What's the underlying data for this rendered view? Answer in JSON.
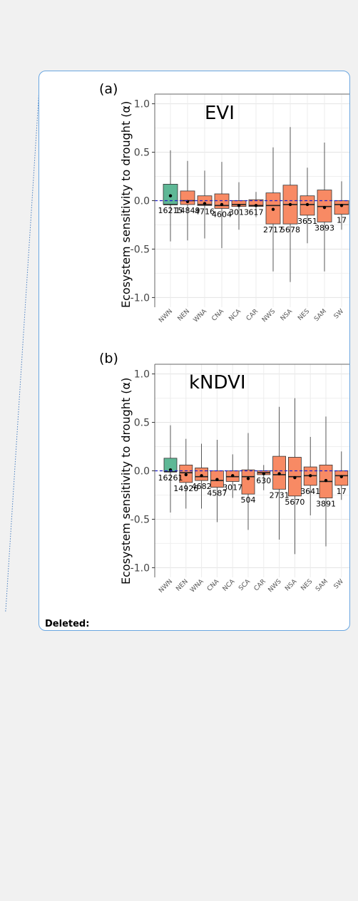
{
  "balloon": {
    "label": "Deleted:",
    "border_color": "#6aa6e0",
    "connector_color": "#4a7fc0"
  },
  "figure": {
    "ylabel": "Ecosystem sensitivity to drought (α)",
    "colors": {
      "wet": "#5fb896",
      "dry": "#f88a64",
      "zero_line": "#1e1ec8"
    }
  },
  "chart_data": [
    {
      "type": "boxplot",
      "panel": "(a)",
      "title": "EVI",
      "ylabel": "Ecosystem sensitivity to drought (α)",
      "ylim": [
        -1.1,
        1.1
      ],
      "yticks": [
        "1.0",
        "0.5",
        "0.0",
        "-0.5",
        "-1.0"
      ],
      "ytick_values": [
        1.0,
        0.5,
        0.0,
        -0.5,
        -1.0
      ],
      "grid": true,
      "categories": [
        "NWN",
        "NEN",
        "WNA",
        "CNA",
        "NCA",
        "CAR",
        "NWS",
        "NSA",
        "NES",
        "SAM",
        "SW"
      ],
      "boxes": [
        {
          "cat": "NWN",
          "whislo": -0.42,
          "q1": -0.04,
          "med": -0.04,
          "q3": 0.17,
          "whishi": 0.52,
          "mean": 0.05,
          "n": "16215",
          "group": "wet"
        },
        {
          "cat": "NEN",
          "whislo": -0.41,
          "q1": -0.04,
          "med": 0.0,
          "q3": 0.1,
          "whishi": 0.41,
          "mean": -0.01,
          "n": "14849",
          "group": "dry"
        },
        {
          "cat": "WNA",
          "whislo": -0.39,
          "q1": -0.05,
          "med": -0.04,
          "q3": 0.05,
          "whishi": 0.31,
          "mean": -0.03,
          "n": "4716",
          "group": "dry"
        },
        {
          "cat": "CNA",
          "whislo": -0.49,
          "q1": -0.08,
          "med": -0.05,
          "q3": 0.07,
          "whishi": 0.4,
          "mean": -0.04,
          "n": "4604",
          "group": "dry"
        },
        {
          "cat": "NCA",
          "whislo": -0.3,
          "q1": -0.06,
          "med": -0.04,
          "q3": 0.0,
          "whishi": 0.19,
          "mean": -0.05,
          "n": "3013",
          "group": "dry"
        },
        {
          "cat": "CAR",
          "whislo": -0.17,
          "q1": -0.06,
          "med": -0.05,
          "q3": 0.01,
          "whishi": 0.09,
          "mean": -0.05,
          "n": "617",
          "group": "dry"
        },
        {
          "cat": "NWS",
          "whislo": -0.73,
          "q1": -0.24,
          "med": -0.05,
          "q3": 0.08,
          "whishi": 0.55,
          "mean": -0.09,
          "n": "2717",
          "group": "dry"
        },
        {
          "cat": "NSA",
          "whislo": -0.84,
          "q1": -0.24,
          "med": -0.04,
          "q3": 0.16,
          "whishi": 0.76,
          "mean": -0.04,
          "n": "5678",
          "group": "dry"
        },
        {
          "cat": "NES",
          "whislo": -0.44,
          "q1": -0.15,
          "med": -0.04,
          "q3": 0.05,
          "whishi": 0.34,
          "mean": -0.04,
          "n": "3651",
          "group": "dry"
        },
        {
          "cat": "SAM",
          "whislo": -0.73,
          "q1": -0.22,
          "med": -0.06,
          "q3": 0.11,
          "whishi": 0.6,
          "mean": -0.07,
          "n": "3893",
          "group": "dry"
        },
        {
          "cat": "SW",
          "whislo": -0.3,
          "q1": -0.14,
          "med": -0.04,
          "q3": 0.0,
          "whishi": 0.2,
          "mean": -0.05,
          "n": "17",
          "group": "dry"
        }
      ]
    },
    {
      "type": "boxplot",
      "panel": "(b)",
      "title": "kNDVI",
      "ylabel": "Ecosystem sensitivity to drought (α)",
      "ylim": [
        -1.1,
        1.1
      ],
      "yticks": [
        "1.0",
        "0.5",
        "0.0",
        "-0.5",
        "-1.0"
      ],
      "ytick_values": [
        1.0,
        0.5,
        0.0,
        -0.5,
        -1.0
      ],
      "grid": true,
      "categories": [
        "NWN",
        "NEN",
        "WNA",
        "CNA",
        "NCA",
        "SCA",
        "CAR",
        "NWS",
        "NSA",
        "NES",
        "SAM",
        "SW"
      ],
      "boxes": [
        {
          "cat": "NWN",
          "whislo": -0.43,
          "q1": -0.01,
          "med": -0.01,
          "q3": 0.13,
          "whishi": 0.47,
          "mean": 0.01,
          "n": "16261",
          "group": "wet"
        },
        {
          "cat": "NEN",
          "whislo": -0.39,
          "q1": -0.12,
          "med": -0.02,
          "q3": 0.06,
          "whishi": 0.33,
          "mean": -0.04,
          "n": "14926",
          "group": "dry"
        },
        {
          "cat": "WNA",
          "whislo": -0.39,
          "q1": -0.1,
          "med": -0.06,
          "q3": 0.03,
          "whishi": 0.28,
          "mean": -0.05,
          "n": "4682",
          "group": "dry"
        },
        {
          "cat": "CNA",
          "whislo": -0.53,
          "q1": -0.17,
          "med": -0.1,
          "q3": 0.0,
          "whishi": 0.32,
          "mean": -0.09,
          "n": "4587",
          "group": "dry"
        },
        {
          "cat": "NCA",
          "whislo": -0.28,
          "q1": -0.11,
          "med": -0.06,
          "q3": 0.0,
          "whishi": 0.17,
          "mean": -0.05,
          "n": "3017",
          "group": "dry"
        },
        {
          "cat": "SCA",
          "whislo": -0.61,
          "q1": -0.24,
          "med": -0.06,
          "q3": 0.01,
          "whishi": 0.39,
          "mean": -0.08,
          "n": "504",
          "group": "dry"
        },
        {
          "cat": "CAR",
          "whislo": -0.2,
          "q1": -0.04,
          "med": -0.02,
          "q3": 0.0,
          "whishi": 0.06,
          "mean": -0.03,
          "n": "630",
          "group": "dry"
        },
        {
          "cat": "NWS",
          "whislo": -0.71,
          "q1": -0.19,
          "med": -0.04,
          "q3": 0.15,
          "whishi": 0.66,
          "mean": -0.03,
          "n": "2731",
          "group": "dry"
        },
        {
          "cat": "NSA",
          "whislo": -0.86,
          "q1": -0.26,
          "med": -0.06,
          "q3": 0.14,
          "whishi": 0.75,
          "mean": -0.07,
          "n": "5670",
          "group": "dry"
        },
        {
          "cat": "NES",
          "whislo": -0.46,
          "q1": -0.15,
          "med": -0.05,
          "q3": 0.04,
          "whishi": 0.35,
          "mean": -0.05,
          "n": "3641",
          "group": "dry"
        },
        {
          "cat": "SAM",
          "whislo": -0.78,
          "q1": -0.28,
          "med": -0.11,
          "q3": 0.06,
          "whishi": 0.56,
          "mean": -0.1,
          "n": "3891",
          "group": "dry"
        },
        {
          "cat": "SW",
          "whislo": -0.3,
          "q1": -0.15,
          "med": -0.05,
          "q3": 0.0,
          "whishi": 0.2,
          "mean": -0.06,
          "n": "17",
          "group": "dry"
        }
      ]
    }
  ]
}
